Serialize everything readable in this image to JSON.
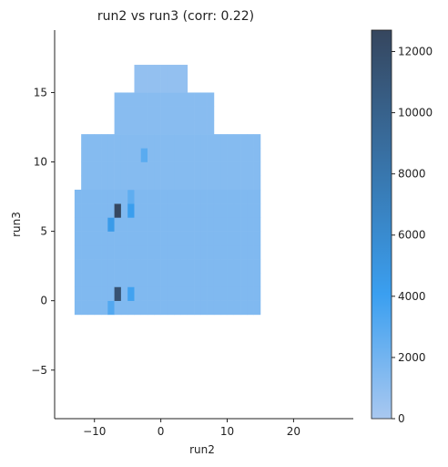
{
  "chart_data": {
    "type": "heatmap",
    "title": "run2 vs run3 (corr: 0.22)",
    "xlabel": "run2",
    "ylabel": "run3",
    "xlim": [
      -16,
      29
    ],
    "ylim": [
      -8.5,
      19.5
    ],
    "x_ticks": [
      -10,
      0,
      10,
      20
    ],
    "x_tick_labels": [
      "−10",
      "0",
      "10",
      "20"
    ],
    "y_ticks": [
      -5,
      0,
      5,
      10,
      15
    ],
    "y_tick_labels": [
      "−5",
      "0",
      "5",
      "10",
      "15"
    ],
    "bin_size_x": 1.0,
    "bin_size_y": 1.0,
    "colorbar": {
      "range": [
        0,
        12700
      ],
      "ticks": [
        0,
        2000,
        4000,
        6000,
        8000,
        10000,
        12000
      ],
      "tick_labels": [
        "0",
        "2000",
        "4000",
        "6000",
        "8000",
        "10000",
        "12000"
      ],
      "color_low": "#a9c8f0",
      "color_mid": "#3a9ff0",
      "color_high": "#36465e"
    },
    "grid": false,
    "density_regions": [
      {
        "x": [
          -13,
          15
        ],
        "y": [
          -1,
          8
        ],
        "value": 1500
      },
      {
        "x": [
          -12,
          15
        ],
        "y": [
          8,
          12
        ],
        "value": 1300
      },
      {
        "x": [
          -7,
          8
        ],
        "y": [
          12,
          15
        ],
        "value": 1200
      },
      {
        "x": [
          -4,
          4
        ],
        "y": [
          15,
          17
        ],
        "value": 800
      }
    ],
    "hot_bins": [
      {
        "x": -7,
        "y": 6,
        "value": 12500
      },
      {
        "x": -7,
        "y": 0,
        "value": 11500
      },
      {
        "x": -8,
        "y": 5,
        "value": 4500
      },
      {
        "x": -5,
        "y": 6,
        "value": 4200
      },
      {
        "x": -5,
        "y": 0,
        "value": 3800
      },
      {
        "x": -8,
        "y": -1,
        "value": 3200
      },
      {
        "x": -5,
        "y": 7,
        "value": 2700
      },
      {
        "x": -3,
        "y": 10,
        "value": 2900
      }
    ]
  }
}
